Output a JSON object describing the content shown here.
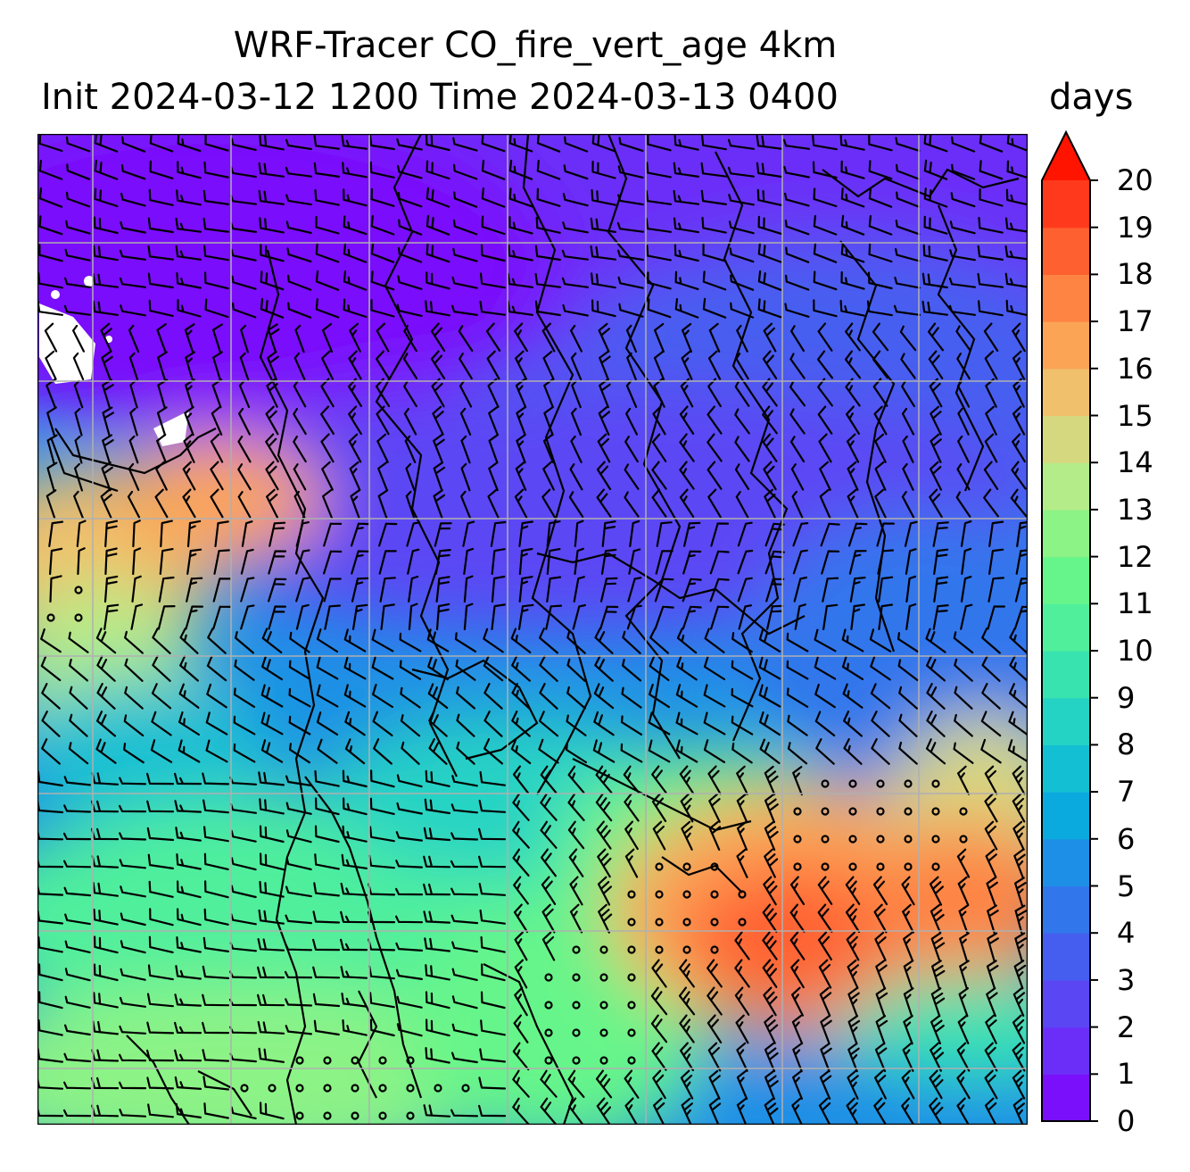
{
  "title": {
    "line1": "WRF-Tracer CO_fire_vert_age 4km",
    "line2": "Init 2024-03-12 1200 Time 2024-03-13 0400",
    "units": "days"
  },
  "colorbar": {
    "ticks": [
      "0",
      "1",
      "2",
      "3",
      "4",
      "5",
      "6",
      "7",
      "8",
      "9",
      "10",
      "11",
      "12",
      "13",
      "14",
      "15",
      "16",
      "17",
      "18",
      "19",
      "20"
    ],
    "colors": [
      "#7a10fb",
      "#6b2ef8",
      "#5b46f4",
      "#465ef0",
      "#3276ec",
      "#1e8fe6",
      "#0aa9de",
      "#12bfd3",
      "#25d3c4",
      "#38e3b0",
      "#4fef9c",
      "#66f58a",
      "#8cf386",
      "#b3ec88",
      "#d6d880",
      "#f0c06c",
      "#fca456",
      "#fe8444",
      "#ff6030",
      "#ff3a1c",
      "#ff1400"
    ],
    "extend": "max"
  },
  "map": {
    "value_range": [
      0,
      20
    ],
    "gridlines": true,
    "coastlines": true,
    "wind_barbs": true,
    "calm_markers": true
  }
}
